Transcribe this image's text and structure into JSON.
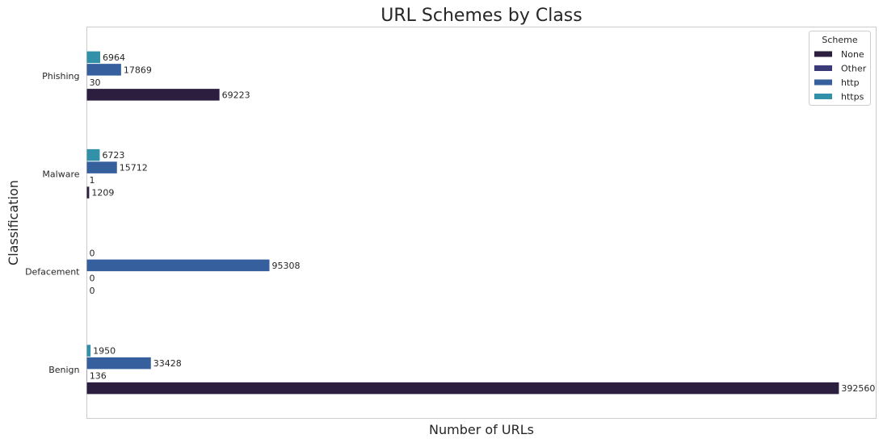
{
  "chart_data": {
    "type": "bar",
    "orientation": "horizontal",
    "title": "URL Schemes by Class",
    "xlabel": "Number of URLs",
    "ylabel": "Classification",
    "categories": [
      "Phishing",
      "Malware",
      "Defacement",
      "Benign"
    ],
    "series": [
      {
        "name": "None",
        "color": "#2b1e3e",
        "values": [
          69223,
          1209,
          0,
          392560
        ]
      },
      {
        "name": "Other",
        "color": "#3b3a78",
        "values": [
          30,
          1,
          0,
          136
        ]
      },
      {
        "name": "http",
        "color": "#35609d",
        "values": [
          17869,
          15712,
          95308,
          33428
        ]
      },
      {
        "name": "https",
        "color": "#3290a8",
        "values": [
          6964,
          6723,
          0,
          1950
        ]
      }
    ],
    "xlim": [
      0,
      412000
    ],
    "grid": false,
    "x_ticks_visible": false,
    "legend": {
      "title": "Scheme",
      "placement": "top-right"
    },
    "data_labels": true
  }
}
